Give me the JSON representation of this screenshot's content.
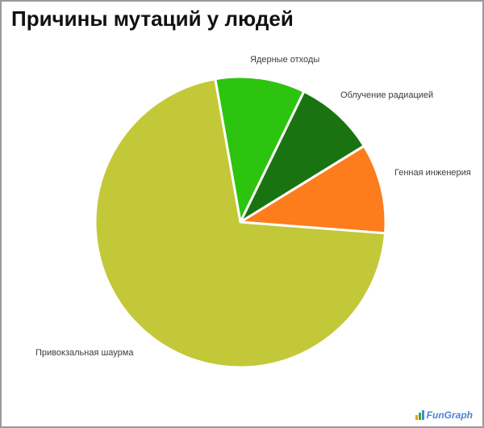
{
  "page": {
    "title": "Причины мутаций у людей"
  },
  "chart_data": {
    "type": "pie",
    "title": "Причины мутаций у людей",
    "categories": [
      "Ядерные отходы",
      "Облучение радиацией",
      "Генная инженерия",
      "Привокзальная шаурма"
    ],
    "values": [
      10,
      9,
      10,
      71
    ],
    "unit": "percent",
    "colors": [
      "#2dc40f",
      "#1a7311",
      "#fd7c1c",
      "#c3c838"
    ],
    "start_angle_deg": -10,
    "slice_gap_color": "#ffffff",
    "legend": "none",
    "labels_position": "outside"
  },
  "watermark": {
    "text": "FunGraph"
  }
}
